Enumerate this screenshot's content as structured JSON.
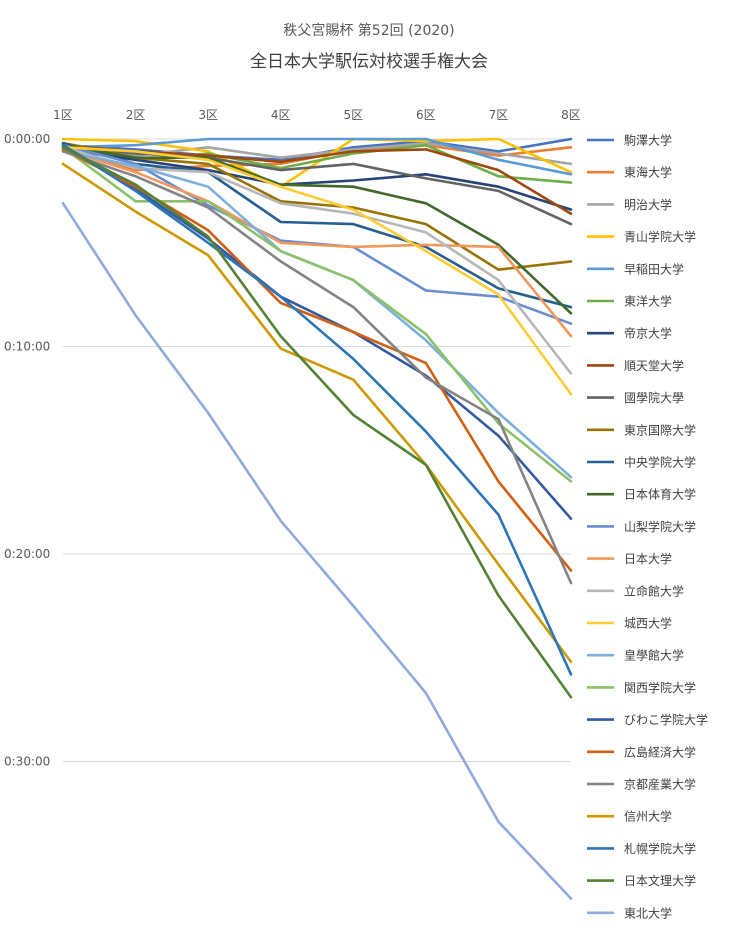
{
  "chart_data": {
    "type": "line",
    "title": "秩父宮賜杯 第52回 (2020)",
    "subtitle": "全日本大学駅伝対校選手権大会",
    "xlabel": "",
    "ylabel": "",
    "categories": [
      "1区",
      "2区",
      "3区",
      "4区",
      "5区",
      "6区",
      "7区",
      "8区"
    ],
    "y_ticks": [
      "0:00:00",
      "0:10:00",
      "0:20:00",
      "0:30:00"
    ],
    "ylim_minutes": [
      0,
      37.5
    ],
    "y_reversed": true,
    "x_axis_position": "top",
    "grid": true,
    "legend_position": "right",
    "value_unit": "minutes behind leader",
    "series": [
      {
        "name": "駒澤大学",
        "color": "#4472C4",
        "values": [
          0.3,
          0.5,
          0.8,
          1.0,
          0.4,
          0.1,
          0.6,
          0.0
        ]
      },
      {
        "name": "東海大学",
        "color": "#ED7D31",
        "values": [
          0.5,
          1.5,
          1.3,
          1.2,
          0.5,
          0.3,
          0.8,
          0.4
        ]
      },
      {
        "name": "明治大学",
        "color": "#A5A5A5",
        "values": [
          0.2,
          0.8,
          0.4,
          0.9,
          0.5,
          0.2,
          0.7,
          1.2
        ]
      },
      {
        "name": "青山学院大学",
        "color": "#FFC000",
        "values": [
          0.0,
          0.1,
          0.6,
          2.3,
          0.0,
          0.1,
          0.0,
          1.6
        ]
      },
      {
        "name": "早稲田大学",
        "color": "#5B9BD5",
        "values": [
          0.4,
          0.3,
          0.0,
          0.0,
          0.0,
          0.0,
          1.0,
          1.7
        ]
      },
      {
        "name": "東洋大学",
        "color": "#70AD47",
        "values": [
          0.3,
          1.0,
          0.7,
          1.4,
          0.7,
          0.3,
          1.8,
          2.1
        ]
      },
      {
        "name": "帝京大学",
        "color": "#264478",
        "values": [
          0.5,
          1.0,
          1.5,
          2.2,
          2.0,
          1.7,
          2.3,
          3.4
        ]
      },
      {
        "name": "順天堂大学",
        "color": "#9E480E",
        "values": [
          0.3,
          0.6,
          0.8,
          1.1,
          0.6,
          0.5,
          1.5,
          3.6
        ]
      },
      {
        "name": "國學院大學",
        "color": "#636363",
        "values": [
          0.3,
          0.7,
          0.9,
          1.5,
          1.2,
          1.9,
          2.5,
          4.1
        ]
      },
      {
        "name": "東京国際大学",
        "color": "#997300",
        "values": [
          0.2,
          0.9,
          1.2,
          3.0,
          3.3,
          4.1,
          6.3,
          5.9
        ]
      },
      {
        "name": "中央学院大学",
        "color": "#255E91",
        "values": [
          0.2,
          1.2,
          1.6,
          4.0,
          4.1,
          5.2,
          7.2,
          8.1
        ]
      },
      {
        "name": "日本体育大学",
        "color": "#43682B",
        "values": [
          0.3,
          0.9,
          0.9,
          2.2,
          2.3,
          3.1,
          5.1,
          8.4
        ]
      },
      {
        "name": "山梨学院大学",
        "color": "#698ED0",
        "values": [
          0.3,
          1.2,
          3.2,
          4.9,
          5.2,
          7.3,
          7.6,
          8.9
        ]
      },
      {
        "name": "日本大学",
        "color": "#F1975A",
        "values": [
          0.5,
          1.6,
          3.0,
          5.0,
          5.2,
          5.1,
          5.2,
          9.5
        ]
      },
      {
        "name": "立命館大学",
        "color": "#B7B7B7",
        "values": [
          0.4,
          1.4,
          1.6,
          3.1,
          3.6,
          4.5,
          6.8,
          11.3
        ]
      },
      {
        "name": "城西大学",
        "color": "#FFCD33",
        "values": [
          0.4,
          0.6,
          1.0,
          2.3,
          3.4,
          5.4,
          7.5,
          12.3
        ]
      },
      {
        "name": "皇學館大学",
        "color": "#7CAFDD",
        "values": [
          0.6,
          1.3,
          2.3,
          5.4,
          6.8,
          9.7,
          13.2,
          16.3
        ]
      },
      {
        "name": "関西学院大学",
        "color": "#8CC168",
        "values": [
          0.4,
          3.0,
          3.0,
          5.4,
          6.8,
          9.4,
          13.7,
          16.5
        ]
      },
      {
        "name": "びわこ学院大学",
        "color": "#335AA1",
        "values": [
          0.3,
          2.4,
          4.8,
          7.6,
          9.3,
          11.4,
          14.3,
          18.3
        ]
      },
      {
        "name": "広島経済大学",
        "color": "#D26012",
        "values": [
          0.5,
          2.3,
          4.4,
          7.9,
          9.3,
          10.8,
          16.5,
          20.8
        ]
      },
      {
        "name": "京都産業大学",
        "color": "#848484",
        "values": [
          0.6,
          1.8,
          3.3,
          5.9,
          8.1,
          11.5,
          13.5,
          21.4
        ]
      },
      {
        "name": "信州大学",
        "color": "#CC9A00",
        "values": [
          1.2,
          3.5,
          5.6,
          10.1,
          11.6,
          15.7,
          20.5,
          25.2
        ]
      },
      {
        "name": "札幌学院大学",
        "color": "#2E75B6",
        "values": [
          0.3,
          2.5,
          5.0,
          7.6,
          10.6,
          14.1,
          18.1,
          25.8
        ]
      },
      {
        "name": "日本文理大学",
        "color": "#548235",
        "values": [
          0.4,
          2.2,
          4.7,
          9.5,
          13.3,
          15.7,
          22.0,
          26.9
        ]
      },
      {
        "name": "東北大学",
        "color": "#8FAADC",
        "values": [
          3.1,
          8.5,
          13.2,
          18.4,
          22.5,
          26.7,
          32.9,
          36.6
        ]
      }
    ]
  }
}
